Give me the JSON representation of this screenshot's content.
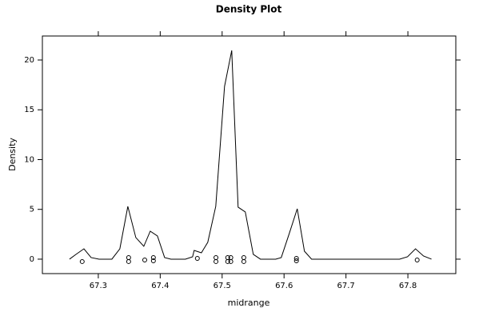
{
  "chart_data": {
    "type": "density",
    "title": "Density Plot",
    "xlabel": "midrange",
    "ylabel": "Density",
    "color": "#000000",
    "x": [
      67.2535,
      67.2639,
      67.2768,
      67.2884,
      67.3013,
      67.3219,
      67.3348,
      67.3477,
      67.3606,
      67.3735,
      67.3839,
      67.3955,
      67.4071,
      67.4174,
      67.4406,
      67.4523,
      67.4548,
      67.4665,
      67.4768,
      67.4897,
      67.5039,
      67.5155,
      67.5258,
      67.5374,
      67.5503,
      67.5619,
      67.5865,
      67.5955,
      67.6084,
      67.6213,
      67.6329,
      67.6445,
      67.7865,
      67.7994,
      67.8123,
      67.8252,
      67.8381
    ],
    "values": [
      0,
      0.48,
      1.04,
      0.16,
      0,
      0,
      1.04,
      5.3,
      2.17,
      1.29,
      2.81,
      2.33,
      0.16,
      0,
      0,
      0.24,
      0.88,
      0.64,
      1.69,
      5.3,
      17.35,
      20.96,
      5.22,
      4.74,
      0.48,
      0,
      0,
      0.16,
      2.57,
      5.06,
      0.8,
      0,
      0,
      0.24,
      1.04,
      0.32,
      0
    ],
    "points": {
      "x": [
        67.274,
        67.349,
        67.349,
        67.375,
        67.389,
        67.389,
        67.46,
        67.49,
        67.49,
        67.509,
        67.509,
        67.514,
        67.514,
        67.535,
        67.535,
        67.62,
        67.62,
        67.815
      ],
      "y": [
        -0.24,
        0.16,
        -0.24,
        -0.08,
        0.16,
        -0.16,
        0.08,
        0.16,
        -0.24,
        0.16,
        -0.24,
        0.16,
        -0.24,
        0.16,
        -0.24,
        0.08,
        -0.16,
        -0.08
      ]
    },
    "xlim": [
      67.2097,
      67.8774
    ],
    "ylim": [
      -1.45,
      22.41
    ],
    "xticks": [
      67.3,
      67.4,
      67.5,
      67.6,
      67.7,
      67.8
    ],
    "yticks": [
      0,
      5,
      10,
      15,
      20
    ]
  }
}
